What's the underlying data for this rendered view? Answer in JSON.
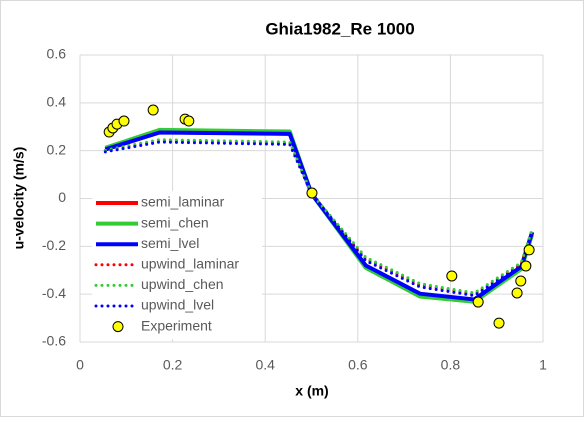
{
  "chart_data": {
    "type": "line",
    "title": "Ghia1982_Re 1000",
    "x_label": "x (m)",
    "y_label": "u-velocity (m/s)",
    "x": [
      0.0547,
      0.1719,
      0.4531,
      0.5,
      0.6172,
      0.7344,
      0.8516,
      0.9531,
      0.9766
    ],
    "series": [
      {
        "name": "semi_laminar",
        "color": "#ff0000",
        "dotted": false,
        "values": [
          0.205,
          0.277,
          0.271,
          0.02,
          -0.282,
          -0.4,
          -0.425,
          -0.287,
          -0.142
        ]
      },
      {
        "name": "semi_chen",
        "color": "#33cc33",
        "dotted": false,
        "values": [
          0.212,
          0.287,
          0.28,
          0.02,
          -0.29,
          -0.41,
          -0.432,
          -0.295,
          -0.15
        ]
      },
      {
        "name": "semi_lvel",
        "color": "#0000ff",
        "dotted": false,
        "values": [
          0.205,
          0.276,
          0.27,
          0.02,
          -0.28,
          -0.398,
          -0.422,
          -0.285,
          -0.14
        ]
      },
      {
        "name": "upwind_laminar",
        "color": "#ff0000",
        "dotted": true,
        "values": [
          0.2,
          0.242,
          0.232,
          0.02,
          -0.252,
          -0.362,
          -0.4,
          -0.272,
          -0.132
        ]
      },
      {
        "name": "upwind_chen",
        "color": "#33cc33",
        "dotted": true,
        "values": [
          0.202,
          0.246,
          0.236,
          0.02,
          -0.246,
          -0.356,
          -0.395,
          -0.268,
          -0.13
        ]
      },
      {
        "name": "upwind_lvel",
        "color": "#0000ff",
        "dotted": true,
        "values": [
          0.195,
          0.236,
          0.226,
          0.02,
          -0.26,
          -0.37,
          -0.406,
          -0.28,
          -0.136
        ]
      },
      {
        "name": "Experiment",
        "color": "#ffff00",
        "markers": true,
        "x": [
          0.063,
          0.071,
          0.08,
          0.095,
          0.158,
          0.227,
          0.235,
          0.501,
          0.803,
          0.86,
          0.905,
          0.944,
          0.952,
          0.963,
          0.97
        ],
        "values": [
          0.278,
          0.295,
          0.311,
          0.324,
          0.37,
          0.332,
          0.324,
          0.023,
          -0.324,
          -0.433,
          -0.521,
          -0.395,
          -0.345,
          -0.282,
          -0.215
        ]
      }
    ],
    "xlim": [
      0,
      1
    ],
    "xticks": [
      0,
      0.2,
      0.4,
      0.6,
      0.8,
      1
    ],
    "ylim": [
      -0.6,
      0.6
    ],
    "yticks": [
      -0.6,
      -0.4,
      -0.2,
      0,
      0.2,
      0.4,
      0.6
    ],
    "grid": true,
    "legend": "lower left"
  }
}
